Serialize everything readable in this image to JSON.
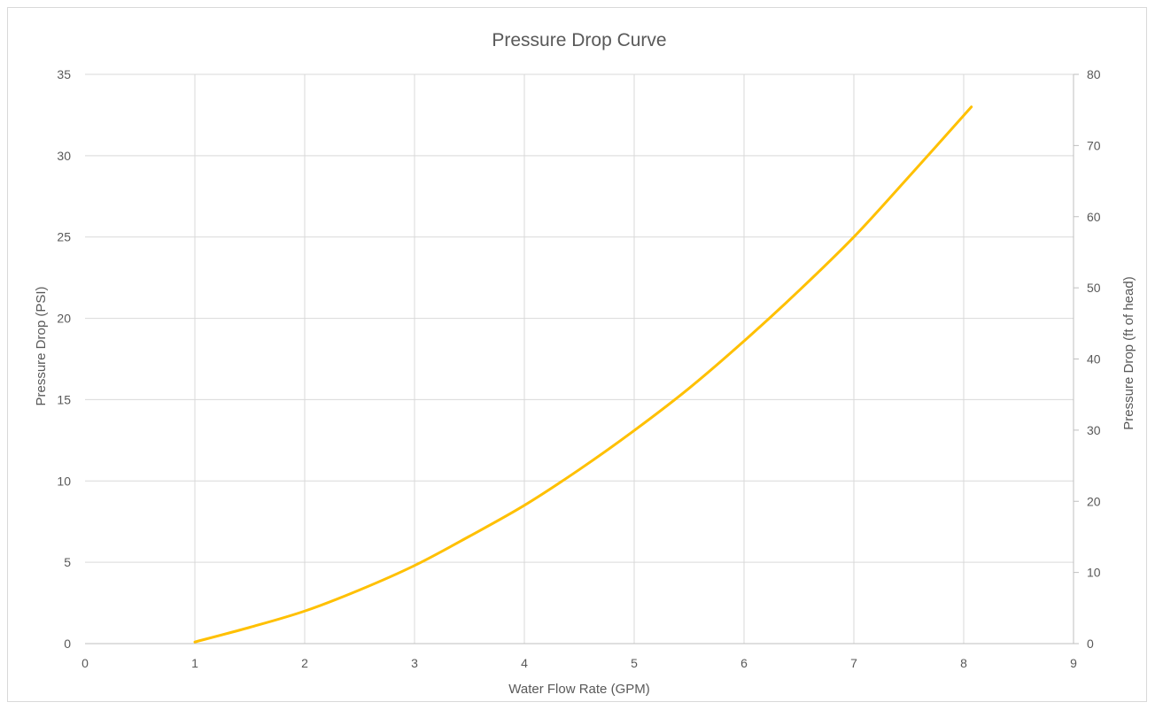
{
  "chart_data": {
    "type": "line",
    "title": "Pressure Drop Curve",
    "xlabel": "Water Flow Rate (GPM)",
    "ylabel": "Pressure Drop (PSI)",
    "y2label": "Pressure Drop (ft of head)",
    "xlim": [
      0,
      9
    ],
    "ylim": [
      0,
      35
    ],
    "y2lim": [
      0,
      80
    ],
    "x_ticks": [
      0,
      1,
      2,
      3,
      4,
      5,
      6,
      7,
      8,
      9
    ],
    "y_ticks": [
      0,
      5,
      10,
      15,
      20,
      25,
      30,
      35
    ],
    "y2_ticks": [
      0,
      10,
      20,
      30,
      40,
      50,
      60,
      70,
      80
    ],
    "grid": true,
    "series_color": "#FFC000",
    "grid_color": "#d9d9d9",
    "text_color": "#595959",
    "series": [
      {
        "x": [
          1.0,
          1.5,
          2.0,
          2.5,
          3.0,
          3.5,
          4.0,
          4.5,
          5.0,
          5.5,
          6.0,
          6.5,
          7.0,
          7.5,
          8.07
        ],
        "values": [
          0.1,
          1.0,
          2.0,
          3.3,
          4.8,
          6.6,
          8.5,
          10.7,
          13.1,
          15.7,
          18.6,
          21.7,
          25.0,
          28.7,
          33.0
        ]
      }
    ]
  }
}
